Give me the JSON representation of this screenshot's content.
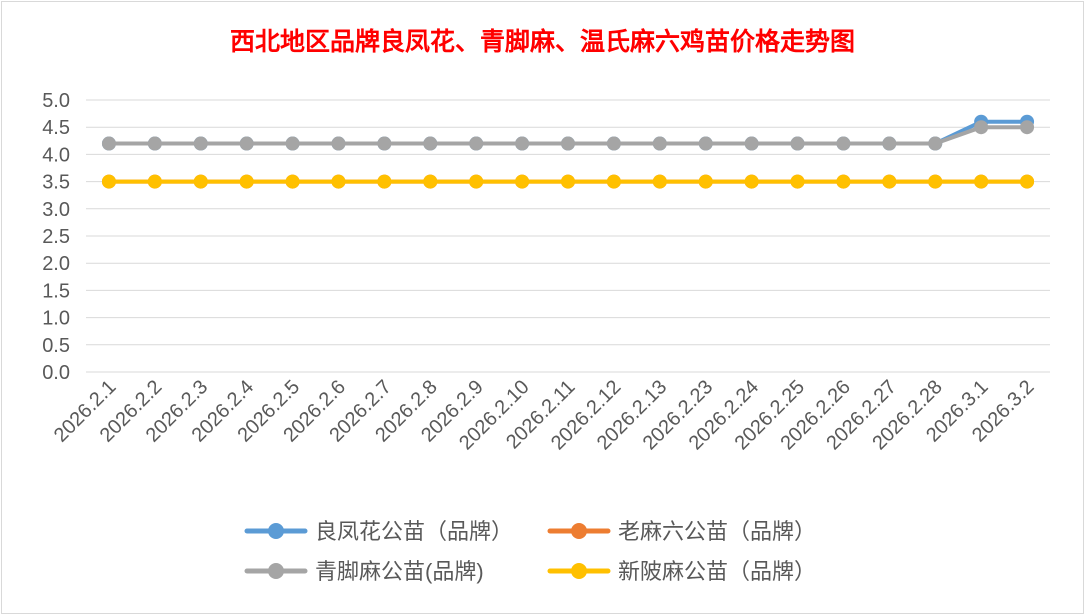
{
  "chart_data": {
    "type": "line",
    "title": "西北地区品牌良凤花、青脚麻、温氏麻六鸡苗价格走势图",
    "categories": [
      "2026.2.1",
      "2026.2.2",
      "2026.2.3",
      "2026.2.4",
      "2026.2.5",
      "2026.2.6",
      "2026.2.7",
      "2026.2.8",
      "2026.2.9",
      "2026.2.10",
      "2026.2.11",
      "2026.2.12",
      "2026.2.13",
      "2026.2.23",
      "2026.2.24",
      "2026.2.25",
      "2026.2.26",
      "2026.2.27",
      "2026.2.28",
      "2026.3.1",
      "2026.3.2"
    ],
    "ylim": [
      0,
      5
    ],
    "yticks": [
      "0.0",
      "0.5",
      "1.0",
      "1.5",
      "2.0",
      "2.5",
      "3.0",
      "3.5",
      "4.0",
      "4.5",
      "5.0"
    ],
    "grid": true,
    "legend_position": "bottom",
    "series": [
      {
        "name": "良凤花公苗（品牌）",
        "color": "#5b9bd5",
        "values": [
          4.2,
          4.2,
          4.2,
          4.2,
          4.2,
          4.2,
          4.2,
          4.2,
          4.2,
          4.2,
          4.2,
          4.2,
          4.2,
          4.2,
          4.2,
          4.2,
          4.2,
          4.2,
          4.2,
          4.6,
          4.6
        ]
      },
      {
        "name": "老麻六公苗（品牌）",
        "color": "#ed7d31",
        "values": [
          3.5,
          3.5,
          3.5,
          3.5,
          3.5,
          3.5,
          3.5,
          3.5,
          3.5,
          3.5,
          3.5,
          3.5,
          3.5,
          3.5,
          3.5,
          3.5,
          3.5,
          3.5,
          3.5,
          3.5,
          3.5
        ]
      },
      {
        "name": "青脚麻公苗(品牌)",
        "color": "#a5a5a5",
        "values": [
          4.2,
          4.2,
          4.2,
          4.2,
          4.2,
          4.2,
          4.2,
          4.2,
          4.2,
          4.2,
          4.2,
          4.2,
          4.2,
          4.2,
          4.2,
          4.2,
          4.2,
          4.2,
          4.2,
          4.5,
          4.5
        ]
      },
      {
        "name": "新陂麻公苗（品牌）",
        "color": "#ffc000",
        "values": [
          3.5,
          3.5,
          3.5,
          3.5,
          3.5,
          3.5,
          3.5,
          3.5,
          3.5,
          3.5,
          3.5,
          3.5,
          3.5,
          3.5,
          3.5,
          3.5,
          3.5,
          3.5,
          3.5,
          3.5,
          3.5
        ]
      }
    ]
  }
}
